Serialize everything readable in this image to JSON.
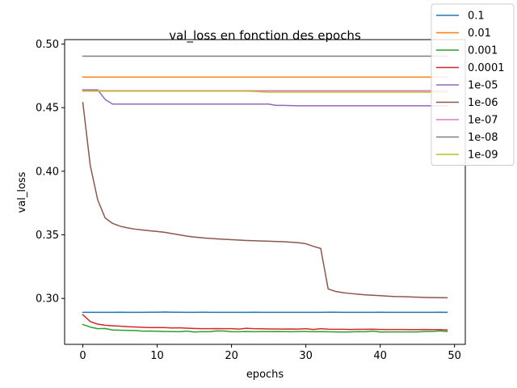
{
  "chart_data": {
    "type": "line",
    "title": "val_loss en fonction des epochs",
    "xlabel": "epochs",
    "ylabel": "val_loss",
    "xlim": [
      -2.45,
      51.45
    ],
    "ylim": [
      0.2639,
      0.5035
    ],
    "xticks": [
      0,
      10,
      20,
      30,
      40,
      50
    ],
    "xtick_labels": [
      "0",
      "10",
      "20",
      "30",
      "40",
      "50"
    ],
    "yticks": [
      0.3,
      0.35,
      0.4,
      0.45,
      0.5
    ],
    "ytick_labels": [
      "0.30",
      "0.35",
      "0.40",
      "0.45",
      "0.50"
    ],
    "grid": false,
    "legend_position": "top-right",
    "x": [
      0,
      1,
      2,
      3,
      4,
      5,
      6,
      7,
      8,
      9,
      10,
      11,
      12,
      13,
      14,
      15,
      16,
      17,
      18,
      19,
      20,
      21,
      22,
      23,
      24,
      25,
      26,
      27,
      28,
      29,
      30,
      31,
      32,
      33,
      34,
      35,
      36,
      37,
      38,
      39,
      40,
      41,
      42,
      43,
      44,
      45,
      46,
      47,
      48,
      49
    ],
    "series": [
      {
        "name": "0.1",
        "color": "#1f77b4",
        "values": [
          0.2891,
          0.2891,
          0.2891,
          0.2891,
          0.2891,
          0.2892,
          0.2891,
          0.2891,
          0.2891,
          0.2892,
          0.2892,
          0.2893,
          0.2892,
          0.2892,
          0.2891,
          0.2891,
          0.2892,
          0.2891,
          0.2891,
          0.2891,
          0.2891,
          0.2891,
          0.2891,
          0.2892,
          0.2891,
          0.2891,
          0.2891,
          0.2891,
          0.2891,
          0.2891,
          0.2891,
          0.2891,
          0.2891,
          0.2892,
          0.2892,
          0.2891,
          0.2891,
          0.2891,
          0.2891,
          0.2891,
          0.2892,
          0.2891,
          0.2891,
          0.2891,
          0.2891,
          0.2891,
          0.2891,
          0.2891,
          0.2892,
          0.2891
        ]
      },
      {
        "name": "0.01",
        "color": "#ff7f0e",
        "values": [
          0.474,
          0.474,
          0.474,
          0.474,
          0.474,
          0.474,
          0.474,
          0.474,
          0.474,
          0.474,
          0.474,
          0.474,
          0.474,
          0.474,
          0.474,
          0.474,
          0.474,
          0.474,
          0.474,
          0.474,
          0.474,
          0.474,
          0.474,
          0.474,
          0.474,
          0.474,
          0.474,
          0.474,
          0.474,
          0.474,
          0.474,
          0.474,
          0.474,
          0.474,
          0.474,
          0.474,
          0.474,
          0.474,
          0.474,
          0.474,
          0.474,
          0.474,
          0.474,
          0.474,
          0.474,
          0.474,
          0.474,
          0.474,
          0.474,
          0.474
        ]
      },
      {
        "name": "0.001",
        "color": "#2ca02c",
        "values": [
          0.2795,
          0.2775,
          0.2762,
          0.2764,
          0.2752,
          0.275,
          0.2749,
          0.2748,
          0.2743,
          0.2744,
          0.2742,
          0.274,
          0.274,
          0.2738,
          0.2743,
          0.2736,
          0.2739,
          0.2738,
          0.2745,
          0.2744,
          0.2738,
          0.2738,
          0.274,
          0.2738,
          0.2739,
          0.2739,
          0.274,
          0.2739,
          0.2738,
          0.274,
          0.274,
          0.2738,
          0.2739,
          0.2738,
          0.2737,
          0.2736,
          0.2737,
          0.2739,
          0.2738,
          0.2743,
          0.2736,
          0.2737,
          0.2737,
          0.2737,
          0.2737,
          0.2737,
          0.274,
          0.274,
          0.2745,
          0.274
        ]
      },
      {
        "name": "0.0001",
        "color": "#d62728",
        "values": [
          0.2872,
          0.2818,
          0.2798,
          0.2789,
          0.2785,
          0.2782,
          0.2778,
          0.2776,
          0.2773,
          0.2771,
          0.2771,
          0.2771,
          0.2768,
          0.2769,
          0.2766,
          0.2764,
          0.2762,
          0.2762,
          0.2763,
          0.2762,
          0.2762,
          0.2759,
          0.2765,
          0.2762,
          0.2761,
          0.276,
          0.276,
          0.2759,
          0.276,
          0.2759,
          0.2762,
          0.2756,
          0.2762,
          0.2758,
          0.2757,
          0.2757,
          0.2756,
          0.2757,
          0.2757,
          0.2758,
          0.2756,
          0.2756,
          0.2756,
          0.2756,
          0.2755,
          0.2755,
          0.2756,
          0.2755,
          0.2755,
          0.2752
        ]
      },
      {
        "name": "1e-05",
        "color": "#9467bd",
        "values": [
          0.464,
          0.464,
          0.464,
          0.4565,
          0.4528,
          0.4528,
          0.4528,
          0.4528,
          0.4528,
          0.4528,
          0.4528,
          0.4528,
          0.4528,
          0.4528,
          0.4528,
          0.4528,
          0.4528,
          0.4528,
          0.4528,
          0.4528,
          0.4528,
          0.4528,
          0.4528,
          0.4528,
          0.4528,
          0.4528,
          0.4518,
          0.4518,
          0.4516,
          0.4515,
          0.4515,
          0.4515,
          0.4515,
          0.4515,
          0.4515,
          0.4515,
          0.4515,
          0.4515,
          0.4515,
          0.4515,
          0.4515,
          0.4515,
          0.4515,
          0.4515,
          0.4515,
          0.4515,
          0.4515,
          0.4515,
          0.4515,
          0.4515
        ]
      },
      {
        "name": "1e-06",
        "color": "#8c564b",
        "values": [
          0.454,
          0.4045,
          0.3775,
          0.3633,
          0.359,
          0.3568,
          0.3555,
          0.3545,
          0.3538,
          0.3532,
          0.3526,
          0.352,
          0.351,
          0.35,
          0.349,
          0.3483,
          0.3477,
          0.3472,
          0.3468,
          0.3465,
          0.3462,
          0.3459,
          0.3456,
          0.3454,
          0.3452,
          0.345,
          0.3448,
          0.3446,
          0.3442,
          0.3438,
          0.343,
          0.341,
          0.3393,
          0.3075,
          0.3055,
          0.3045,
          0.3039,
          0.3033,
          0.3028,
          0.3025,
          0.3022,
          0.3018,
          0.3015,
          0.3014,
          0.3012,
          0.301,
          0.3008,
          0.3007,
          0.3006,
          0.3005
        ]
      },
      {
        "name": "1e-07",
        "color": "#e377c2",
        "values": [
          0.4633,
          0.4633,
          0.4633,
          0.4633,
          0.4633,
          0.4633,
          0.4633,
          0.4633,
          0.4633,
          0.4633,
          0.4633,
          0.4633,
          0.4633,
          0.4633,
          0.4633,
          0.4633,
          0.4633,
          0.4633,
          0.4633,
          0.4633,
          0.4633,
          0.4633,
          0.4633,
          0.4633,
          0.4633,
          0.4633,
          0.4633,
          0.4633,
          0.4633,
          0.4633,
          0.4633,
          0.4633,
          0.4633,
          0.4633,
          0.4633,
          0.4633,
          0.4633,
          0.4633,
          0.4633,
          0.4633,
          0.4633,
          0.4633,
          0.4633,
          0.4633,
          0.4633,
          0.4633,
          0.4633,
          0.4633,
          0.4633,
          0.4633
        ]
      },
      {
        "name": "1e-08",
        "color": "#7f7f7f",
        "values": [
          0.4905,
          0.4905,
          0.4905,
          0.4905,
          0.4905,
          0.4905,
          0.4905,
          0.4905,
          0.4905,
          0.4905,
          0.4905,
          0.4905,
          0.4905,
          0.4905,
          0.4905,
          0.4905,
          0.4905,
          0.4905,
          0.4905,
          0.4905,
          0.4905,
          0.4905,
          0.4905,
          0.4905,
          0.4905,
          0.4905,
          0.4905,
          0.4905,
          0.4905,
          0.4905,
          0.4905,
          0.4905,
          0.4905,
          0.4905,
          0.4905,
          0.4905,
          0.4905,
          0.4905,
          0.4905,
          0.4905,
          0.4905,
          0.4905,
          0.4905,
          0.4905,
          0.4905,
          0.4905,
          0.4905,
          0.4905,
          0.4905,
          0.4905
        ]
      },
      {
        "name": "1e-09",
        "color": "#bcbd22",
        "values": [
          0.463,
          0.463,
          0.463,
          0.463,
          0.463,
          0.463,
          0.463,
          0.463,
          0.463,
          0.463,
          0.463,
          0.463,
          0.463,
          0.463,
          0.463,
          0.463,
          0.463,
          0.463,
          0.463,
          0.463,
          0.463,
          0.463,
          0.463,
          0.4628,
          0.4624,
          0.4622,
          0.4622,
          0.4622,
          0.4622,
          0.4622,
          0.4622,
          0.4622,
          0.4622,
          0.4622,
          0.4622,
          0.4622,
          0.4622,
          0.4622,
          0.4622,
          0.4622,
          0.4622,
          0.4622,
          0.4622,
          0.4622,
          0.4622,
          0.4622,
          0.4622,
          0.4622,
          0.4622,
          0.4622
        ]
      }
    ]
  }
}
